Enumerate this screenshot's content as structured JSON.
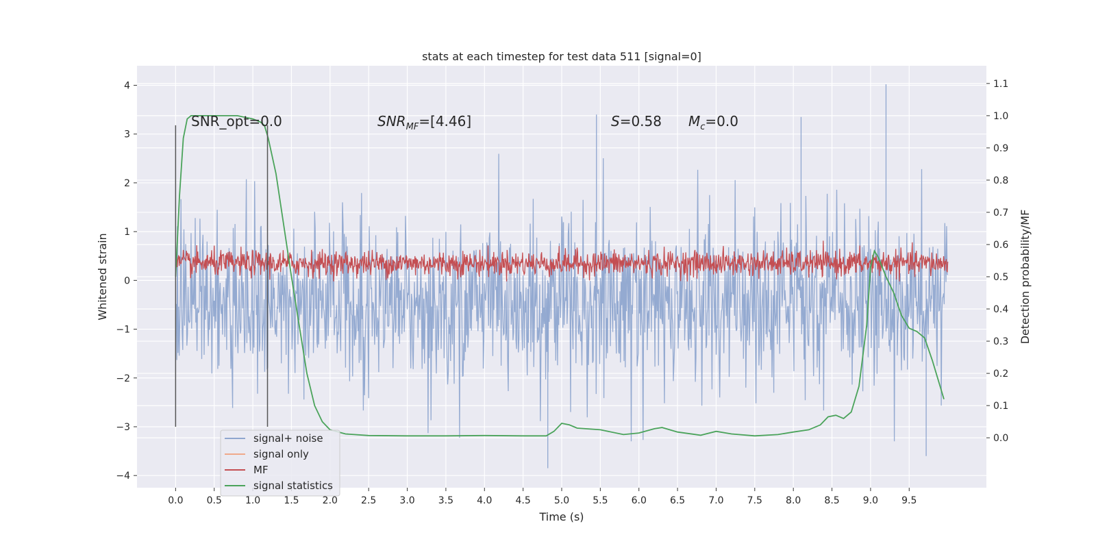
{
  "chart_data": {
    "type": "line",
    "title": "stats at each timestep for test data 511 [signal=0]",
    "xlabel": "Time (s)",
    "ylabel": "Whitened strain",
    "y2label": "Detection probability/MF",
    "xlim": [
      -0.5,
      10.5
    ],
    "ylim": [
      -4.25,
      4.4
    ],
    "y2lim": [
      -0.155,
      1.155
    ],
    "x_ticks": [
      "0.0",
      "0.5",
      "1.0",
      "1.5",
      "2.0",
      "2.5",
      "3.0",
      "3.5",
      "4.0",
      "4.5",
      "5.0",
      "5.5",
      "6.0",
      "6.5",
      "7.0",
      "7.5",
      "8.0",
      "8.5",
      "9.0",
      "9.5"
    ],
    "y_ticks": [
      "−4",
      "−3",
      "−2",
      "−1",
      "0",
      "1",
      "2",
      "3",
      "4"
    ],
    "y2_ticks": [
      "0.0",
      "0.1",
      "0.2",
      "0.3",
      "0.4",
      "0.5",
      "0.6",
      "0.7",
      "0.8",
      "0.9",
      "1.0",
      "1.1"
    ],
    "grid": true,
    "legend_position": "lower-left",
    "annotations": {
      "snr_opt": "SNR_opt=0.0",
      "snr_mf_sym": "SNR",
      "snr_mf_sub": "MF",
      "snr_mf_val": "=[4.46]",
      "s_sym": "S",
      "s_val": "=0.58",
      "mc_sym": "M",
      "mc_sub": "c",
      "mc_val": "=0.0"
    },
    "vertical_lines": [
      0.0,
      1.19
    ],
    "series": [
      {
        "name": "signal+ noise",
        "color": "#8fa6cf",
        "axis": "left",
        "x_range": [
          0.0,
          10.0
        ],
        "mean": -0.45,
        "typical_range": [
          -1.7,
          1.3
        ],
        "extremes": {
          "max": 4.02,
          "min": -3.85
        }
      },
      {
        "name": "signal only",
        "color": "#f0a98a",
        "axis": "left",
        "values": []
      },
      {
        "name": "MF",
        "color": "#c44e52",
        "axis": "left",
        "x_range": [
          0.0,
          10.0
        ],
        "typical_range": [
          0.0,
          0.7
        ]
      },
      {
        "name": "signal statistics",
        "color": "#4aa35a",
        "axis": "right",
        "x": [
          0.0,
          0.05,
          0.1,
          0.15,
          0.2,
          0.3,
          0.5,
          0.8,
          1.0,
          1.1,
          1.15,
          1.2,
          1.3,
          1.4,
          1.5,
          1.6,
          1.7,
          1.8,
          1.9,
          2.0,
          2.2,
          2.5,
          3.0,
          3.5,
          4.0,
          4.5,
          4.8,
          4.9,
          5.0,
          5.1,
          5.2,
          5.5,
          5.8,
          6.0,
          6.2,
          6.3,
          6.5,
          6.8,
          7.0,
          7.2,
          7.5,
          7.8,
          8.0,
          8.2,
          8.35,
          8.45,
          8.55,
          8.65,
          8.75,
          8.85,
          8.95,
          9.0,
          9.05,
          9.1,
          9.2,
          9.3,
          9.4,
          9.5,
          9.6,
          9.7,
          9.8,
          9.9,
          9.95
        ],
        "values": [
          0.5,
          0.75,
          0.93,
          0.99,
          1.0,
          1.0,
          1.0,
          1.0,
          0.99,
          0.98,
          0.97,
          0.93,
          0.82,
          0.66,
          0.5,
          0.35,
          0.2,
          0.1,
          0.05,
          0.025,
          0.012,
          0.007,
          0.006,
          0.006,
          0.007,
          0.006,
          0.006,
          0.02,
          0.045,
          0.04,
          0.03,
          0.025,
          0.01,
          0.015,
          0.028,
          0.032,
          0.018,
          0.008,
          0.02,
          0.012,
          0.006,
          0.01,
          0.018,
          0.025,
          0.04,
          0.065,
          0.07,
          0.06,
          0.08,
          0.16,
          0.35,
          0.53,
          0.58,
          0.56,
          0.5,
          0.45,
          0.38,
          0.34,
          0.33,
          0.31,
          0.24,
          0.16,
          0.12
        ]
      }
    ]
  }
}
